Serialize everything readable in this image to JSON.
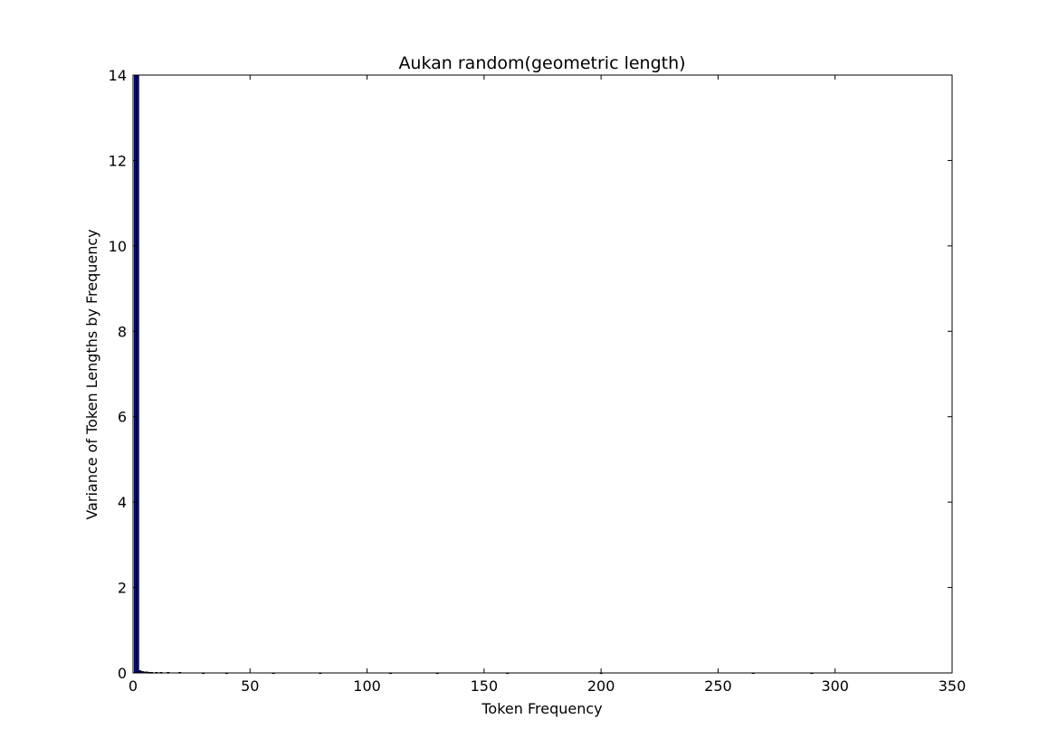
{
  "chart_data": {
    "type": "bar",
    "title": "Aukan random(geometric length)",
    "xlabel": "Token Frequency",
    "ylabel": "Variance of Token Lengths by Frequency",
    "xlim": [
      0,
      350
    ],
    "ylim": [
      0,
      14
    ],
    "x_ticks": [
      0,
      50,
      100,
      150,
      200,
      250,
      300,
      350
    ],
    "y_ticks": [
      0,
      2,
      4,
      6,
      8,
      10,
      12,
      14
    ],
    "grid": false,
    "bar_color": "#0000ff",
    "bar_edge_color": "#000000",
    "series": [
      {
        "x": [
          1,
          2,
          3,
          4,
          5,
          6,
          7,
          8,
          10,
          12,
          15,
          20,
          30,
          40,
          60,
          80,
          110,
          130,
          160,
          200,
          265,
          290
        ],
        "values": [
          14.0,
          14.0,
          0.05,
          0.03,
          0.02,
          0.02,
          0.01,
          0.01,
          0.01,
          0.01,
          0.01,
          0.01,
          0.0,
          0.0,
          0.0,
          0.0,
          0.0,
          0.0,
          0.0,
          0.0,
          0.0,
          0.0
        ]
      }
    ]
  }
}
